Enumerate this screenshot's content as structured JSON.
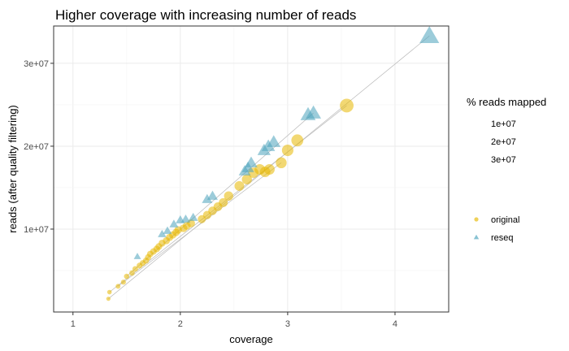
{
  "chart_data": {
    "type": "scatter",
    "title": "Higher coverage with increasing number of reads",
    "xlabel": "coverage",
    "ylabel": "reads (after quality filtering)",
    "xlim": [
      0.82,
      4.5
    ],
    "ylim": [
      0,
      34500000
    ],
    "x_ticks": [
      1,
      2,
      3,
      4
    ],
    "x_tick_labels": [
      "1",
      "2",
      "3",
      "4"
    ],
    "y_ticks": [
      10000000,
      20000000,
      30000000
    ],
    "y_tick_labels": [
      "1e+07",
      "2e+07",
      "3e+07"
    ],
    "grid": true,
    "size_legend": {
      "title": "% reads mapped",
      "labels": [
        "1e+07",
        "2e+07",
        "3e+07"
      ]
    },
    "legend_position": "right",
    "series": [
      {
        "name": "original",
        "shape": "circle",
        "color": "#E7B800",
        "points": [
          [
            1.33,
            1600000
          ],
          [
            1.34,
            2400000
          ],
          [
            1.42,
            3100000
          ],
          [
            1.47,
            3600000
          ],
          [
            1.5,
            4300000
          ],
          [
            1.55,
            4700000
          ],
          [
            1.58,
            5200000
          ],
          [
            1.62,
            5600000
          ],
          [
            1.65,
            5900000
          ],
          [
            1.68,
            6200000
          ],
          [
            1.7,
            6600000
          ],
          [
            1.72,
            7000000
          ],
          [
            1.75,
            7300000
          ],
          [
            1.78,
            7600000
          ],
          [
            1.8,
            7900000
          ],
          [
            1.83,
            8300000
          ],
          [
            1.87,
            8600000
          ],
          [
            1.9,
            9000000
          ],
          [
            1.93,
            9300000
          ],
          [
            1.96,
            9600000
          ],
          [
            1.98,
            9900000
          ],
          [
            2.03,
            10100000
          ],
          [
            2.06,
            10400000
          ],
          [
            2.1,
            10700000
          ],
          [
            2.2,
            11200000
          ],
          [
            2.25,
            11700000
          ],
          [
            2.3,
            12200000
          ],
          [
            2.35,
            12700000
          ],
          [
            2.4,
            13200000
          ],
          [
            2.45,
            14000000
          ],
          [
            2.55,
            15200000
          ],
          [
            2.62,
            16000000
          ],
          [
            2.68,
            16800000
          ],
          [
            2.74,
            17200000
          ],
          [
            2.79,
            16900000
          ],
          [
            2.83,
            17200000
          ],
          [
            2.94,
            18000000
          ],
          [
            3.0,
            19500000
          ],
          [
            3.09,
            20700000
          ],
          [
            3.55,
            24900000
          ]
        ]
      },
      {
        "name": "reseq",
        "shape": "triangle",
        "color": "#4AA3BB",
        "points": [
          [
            1.6,
            6700000
          ],
          [
            1.83,
            9400000
          ],
          [
            1.88,
            9800000
          ],
          [
            1.94,
            10600000
          ],
          [
            2.0,
            11100000
          ],
          [
            2.05,
            11200000
          ],
          [
            2.12,
            11400000
          ],
          [
            2.25,
            13600000
          ],
          [
            2.3,
            14000000
          ],
          [
            2.6,
            17000000
          ],
          [
            2.63,
            17400000
          ],
          [
            2.66,
            18000000
          ],
          [
            2.78,
            19500000
          ],
          [
            2.82,
            20000000
          ],
          [
            2.87,
            20500000
          ],
          [
            3.19,
            23800000
          ],
          [
            3.24,
            24000000
          ],
          [
            4.32,
            33300000
          ]
        ]
      }
    ],
    "trend_lines": [
      [
        [
          1.33,
          1600000
        ],
        [
          4.32,
          33300000
        ]
      ],
      [
        [
          1.34,
          2400000
        ],
        [
          3.55,
          24900000
        ]
      ],
      [
        [
          1.42,
          3100000
        ],
        [
          2.94,
          18000000
        ]
      ],
      [
        [
          1.5,
          4300000
        ],
        [
          3.24,
          24000000
        ]
      ]
    ]
  }
}
